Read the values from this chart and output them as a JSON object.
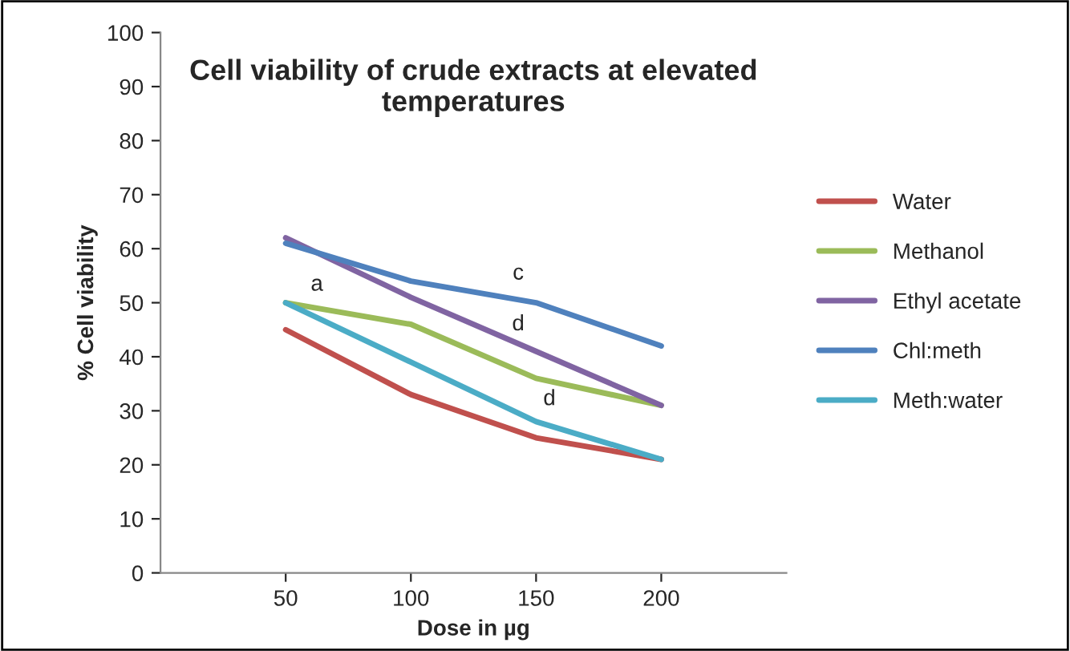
{
  "chart_data": {
    "type": "line",
    "title": "Cell viability of crude extracts at elevated\ntemperatures",
    "xlabel": "Dose in µg",
    "ylabel": "% Cell viability",
    "categories": [
      "50",
      "100",
      "150",
      "200"
    ],
    "series": [
      {
        "name": "Water",
        "color": "#c0504d",
        "values": [
          45,
          33,
          25,
          21
        ]
      },
      {
        "name": "Methanol",
        "color": "#9bbb59",
        "values": [
          50,
          46,
          36,
          31
        ]
      },
      {
        "name": "Ethyl acetate",
        "color": "#8064a2",
        "values": [
          62,
          51,
          41,
          31
        ]
      },
      {
        "name": "Chl:meth",
        "color": "#4f81bd",
        "values": [
          61,
          54,
          50,
          42
        ]
      },
      {
        "name": "Meth:water",
        "color": "#4bacc6",
        "values": [
          50,
          39,
          28,
          21
        ]
      }
    ],
    "annotations": [
      {
        "text": "a",
        "x": "50",
        "y": 50
      },
      {
        "text": "c",
        "x": "150",
        "y": 50
      },
      {
        "text": "d",
        "x": "150",
        "y": 41
      },
      {
        "text": "d",
        "x": "150",
        "y": 28
      }
    ],
    "ylim": [
      0,
      100
    ],
    "yticks": [
      0,
      10,
      20,
      30,
      40,
      50,
      60,
      70,
      80,
      90,
      100
    ],
    "grid": false,
    "legend": "right",
    "marker": "none",
    "line_style": "solid"
  }
}
